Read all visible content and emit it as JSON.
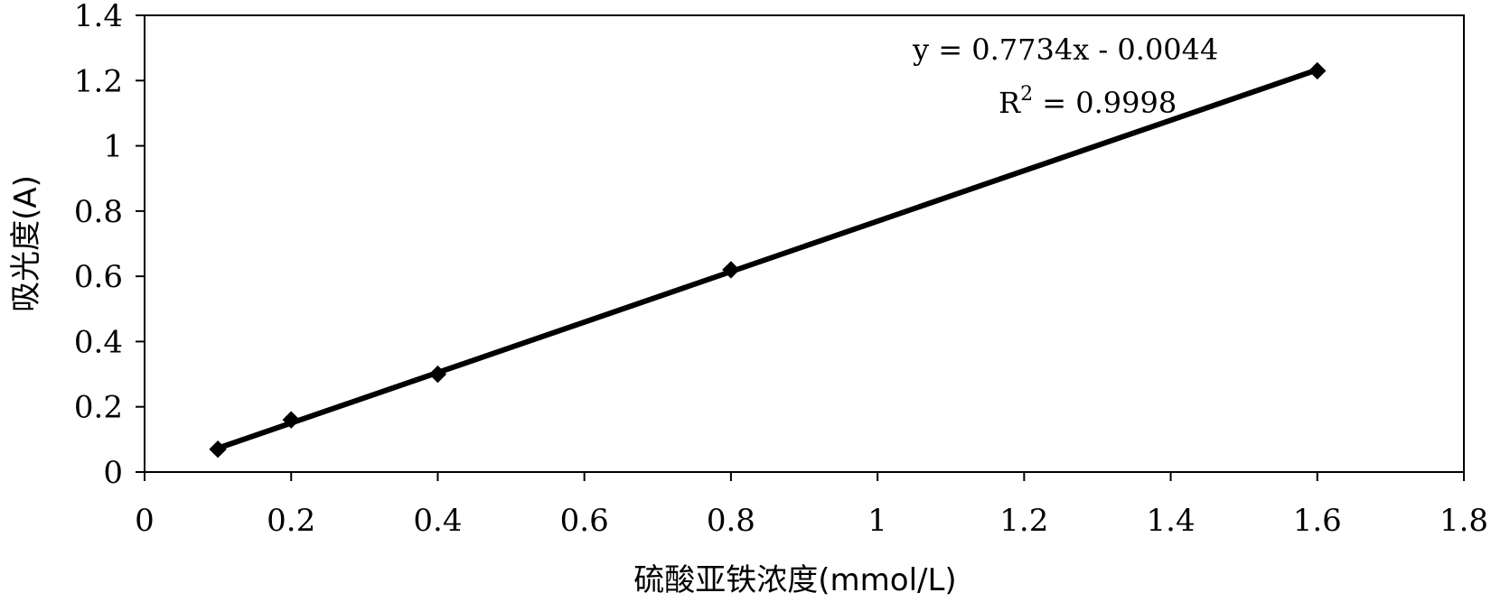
{
  "chart_data": {
    "type": "scatter",
    "title": "",
    "xlabel": "硫酸亚铁浓度(mmol/L)",
    "ylabel": "吸光度(A)",
    "xlim": [
      0,
      1.8
    ],
    "ylim": [
      0,
      1.4
    ],
    "x_ticks": [
      "0",
      "0.2",
      "0.4",
      "0.6",
      "0.8",
      "1",
      "1.2",
      "1.4",
      "1.6",
      "1.8"
    ],
    "y_ticks": [
      "0",
      "0.2",
      "0.4",
      "0.6",
      "0.8",
      "1",
      "1.2",
      "1.4"
    ],
    "grid": false,
    "series": [
      {
        "x": [
          0.1,
          0.2,
          0.4,
          0.8,
          1.6
        ],
        "y": [
          0.07,
          0.16,
          0.3,
          0.62,
          1.23
        ],
        "marker": "diamond",
        "color": "#000000"
      }
    ],
    "trendline": {
      "type": "linear",
      "slope": 0.7734,
      "intercept": -0.0044,
      "x_range": [
        0.1,
        1.6
      ],
      "equation_text": "y = 0.7734x - 0.0044",
      "r2_prefix": "R",
      "r2_superscript": "2",
      "r2_value_text": " = 0.9998"
    }
  }
}
